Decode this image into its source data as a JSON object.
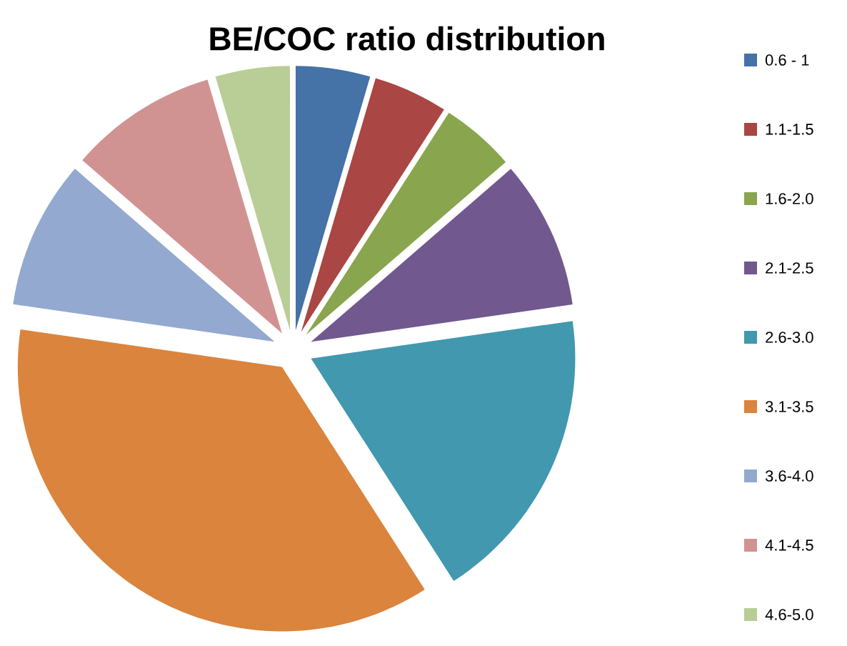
{
  "chart_data": {
    "type": "pie",
    "title": "BE/COC ratio distribution",
    "categories": [
      "0.6 - 1",
      "1.1-1.5",
      "1.6-2.0",
      "2.1-2.5",
      "2.6-3.0",
      "3.1-3.5",
      "3.6-4.0",
      "4.1-4.5",
      "4.6-5.0"
    ],
    "values": [
      4.55,
      4.55,
      4.55,
      9.09,
      18.18,
      36.36,
      9.09,
      9.09,
      4.55
    ],
    "colors": [
      "#4572a7",
      "#aa4643",
      "#89a54e",
      "#71588f",
      "#4198af",
      "#db843d",
      "#93a9cf",
      "#d19392",
      "#b9cd96"
    ],
    "legend": "right"
  }
}
